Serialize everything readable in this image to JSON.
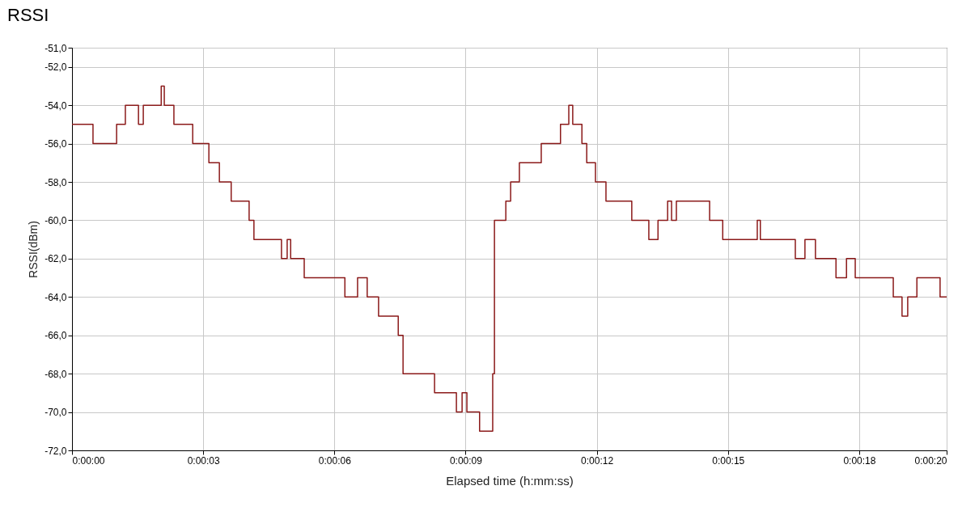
{
  "chart_data": {
    "type": "step",
    "title": "RSSI",
    "xlabel": "Elapsed time (h:mm:ss)",
    "ylabel": "RSSI(dBm)",
    "x": [
      0,
      0.48,
      1.02,
      1.22,
      1.52,
      1.63,
      2.04,
      2.11,
      2.33,
      2.76,
      3.13,
      3.37,
      3.64,
      4.05,
      4.16,
      4.79,
      4.92,
      5.0,
      5.31,
      6.24,
      6.53,
      6.75,
      7.01,
      7.46,
      7.57,
      8.29,
      8.79,
      8.92,
      9.03,
      9.32,
      9.62,
      9.66,
      9.92,
      10.03,
      10.23,
      10.73,
      11.17,
      11.36,
      11.45,
      11.66,
      11.77,
      11.97,
      12.21,
      12.8,
      13.19,
      13.4,
      13.62,
      13.71,
      13.82,
      14.58,
      14.88,
      15.67,
      15.74,
      16.54,
      16.76,
      17.0,
      17.47,
      17.71,
      17.91,
      18.78,
      18.98,
      19.11,
      19.32,
      19.85,
      20
    ],
    "series": [
      {
        "color": "#8b1a1a",
        "values": [
          -55,
          -56,
          -55,
          -54,
          -55,
          -54,
          -53,
          -54,
          -55,
          -56,
          -57,
          -58,
          -59,
          -60,
          -61,
          -62,
          -61,
          -62,
          -63,
          -64,
          -63,
          -64,
          -65,
          -66,
          -68,
          -69,
          -70,
          -69,
          -70,
          -71,
          -68,
          -60,
          -59,
          -58,
          -57,
          -56,
          -55,
          -54,
          -55,
          -56,
          -57,
          -58,
          -59,
          -60,
          -61,
          -60,
          -59,
          -60,
          -59,
          -60,
          -61,
          -60,
          -61,
          -62,
          -61,
          -62,
          -63,
          -62,
          -63,
          -64,
          -65,
          -64,
          -63,
          -64,
          -64
        ]
      }
    ],
    "xlim": [
      0,
      20
    ],
    "xticks": [
      {
        "value": 0,
        "label": "0:00:00"
      },
      {
        "value": 3,
        "label": "0:00:03"
      },
      {
        "value": 6,
        "label": "0:00:06"
      },
      {
        "value": 9,
        "label": "0:00:09"
      },
      {
        "value": 12,
        "label": "0:00:12"
      },
      {
        "value": 15,
        "label": "0:00:15"
      },
      {
        "value": 18,
        "label": "0:00:18"
      },
      {
        "value": 20,
        "label": "0:00:20"
      }
    ],
    "ylim": [
      -72,
      -51
    ],
    "yticks": [
      {
        "value": -51,
        "label": "-51,0"
      },
      {
        "value": -52,
        "label": "-52,0"
      },
      {
        "value": -54,
        "label": "-54,0"
      },
      {
        "value": -56,
        "label": "-56,0"
      },
      {
        "value": -58,
        "label": "-58,0"
      },
      {
        "value": -60,
        "label": "-60,0"
      },
      {
        "value": -62,
        "label": "-62,0"
      },
      {
        "value": -64,
        "label": "-64,0"
      },
      {
        "value": -66,
        "label": "-66,0"
      },
      {
        "value": -68,
        "label": "-68,0"
      },
      {
        "value": -70,
        "label": "-70,0"
      },
      {
        "value": -72,
        "label": "-72,0"
      }
    ],
    "grid": true,
    "marker": "none",
    "line_style": "solid"
  }
}
